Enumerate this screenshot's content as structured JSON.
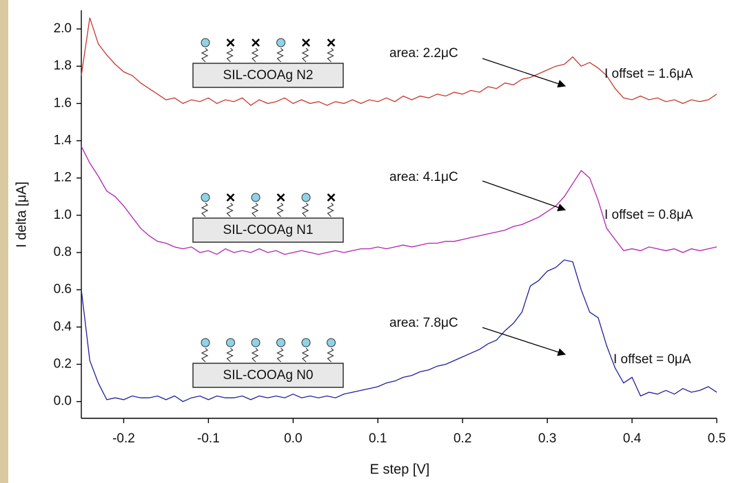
{
  "chart_data": {
    "type": "line",
    "x_label": "E step [V]",
    "y_label": "I delta [μA]",
    "xlim": [
      -0.25,
      0.5
    ],
    "ylim": [
      -0.09,
      2.1
    ],
    "xticks": [
      -0.2,
      -0.1,
      {
        "value": 0,
        "label": "0.0"
      },
      0.1,
      0.2,
      0.3,
      0.4,
      0.5
    ],
    "yticks": [
      {
        "value": 0,
        "label": "0.0"
      },
      0.2,
      0.4,
      0.6,
      0.8,
      {
        "value": 1,
        "label": "1.0"
      },
      1.2,
      1.4,
      1.6,
      1.8,
      {
        "value": 2,
        "label": "2.0"
      }
    ],
    "x": [
      -0.25,
      -0.24,
      -0.23,
      -0.22,
      -0.21,
      -0.2,
      -0.19,
      -0.18,
      -0.17,
      -0.16,
      -0.15,
      -0.14,
      -0.13,
      -0.12,
      -0.11,
      -0.1,
      -0.09,
      -0.08,
      -0.07,
      -0.06,
      -0.05,
      -0.04,
      -0.03,
      -0.02,
      -0.01,
      0,
      0.01,
      0.02,
      0.03,
      0.04,
      0.05,
      0.06,
      0.07,
      0.08,
      0.09,
      0.1,
      0.11,
      0.12,
      0.13,
      0.14,
      0.15,
      0.16,
      0.17,
      0.18,
      0.19,
      0.2,
      0.21,
      0.22,
      0.23,
      0.24,
      0.25,
      0.26,
      0.27,
      0.28,
      0.29,
      0.3,
      0.31,
      0.32,
      0.33,
      0.34,
      0.35,
      0.36,
      0.37,
      0.38,
      0.39,
      0.4,
      0.41,
      0.42,
      0.43,
      0.44,
      0.45,
      0.46,
      0.47,
      0.48,
      0.49,
      0.5
    ],
    "series": [
      {
        "name": "SIL-COOAg N2",
        "color": "#c8372d",
        "area_label": "area: 2.2μC",
        "offset_label": "I offset = 1.6μA",
        "values": [
          1.75,
          2.06,
          1.92,
          1.86,
          1.81,
          1.77,
          1.75,
          1.71,
          1.68,
          1.65,
          1.62,
          1.63,
          1.6,
          1.62,
          1.61,
          1.63,
          1.6,
          1.62,
          1.61,
          1.63,
          1.59,
          1.62,
          1.6,
          1.61,
          1.63,
          1.6,
          1.62,
          1.6,
          1.61,
          1.59,
          1.61,
          1.6,
          1.62,
          1.6,
          1.62,
          1.61,
          1.63,
          1.61,
          1.64,
          1.62,
          1.64,
          1.63,
          1.65,
          1.64,
          1.66,
          1.65,
          1.67,
          1.66,
          1.69,
          1.68,
          1.71,
          1.7,
          1.73,
          1.74,
          1.76,
          1.78,
          1.8,
          1.81,
          1.85,
          1.8,
          1.82,
          1.79,
          1.75,
          1.68,
          1.63,
          1.62,
          1.64,
          1.62,
          1.63,
          1.61,
          1.62,
          1.6,
          1.62,
          1.61,
          1.62,
          1.65
        ]
      },
      {
        "name": "SIL-COOAg N1",
        "color": "#b023b0",
        "area_label": "area: 4.1μC",
        "offset_label": "I offset = 0.8μA",
        "values": [
          1.37,
          1.28,
          1.21,
          1.13,
          1.1,
          1.05,
          0.99,
          0.93,
          0.89,
          0.86,
          0.85,
          0.83,
          0.82,
          0.83,
          0.8,
          0.81,
          0.79,
          0.82,
          0.8,
          0.81,
          0.8,
          0.82,
          0.8,
          0.81,
          0.79,
          0.8,
          0.81,
          0.8,
          0.79,
          0.8,
          0.81,
          0.8,
          0.81,
          0.82,
          0.82,
          0.83,
          0.82,
          0.83,
          0.84,
          0.83,
          0.84,
          0.85,
          0.85,
          0.86,
          0.86,
          0.87,
          0.88,
          0.89,
          0.9,
          0.91,
          0.92,
          0.94,
          0.95,
          0.97,
          0.99,
          1.02,
          1.05,
          1.1,
          1.17,
          1.24,
          1.2,
          1.08,
          0.93,
          0.87,
          0.81,
          0.82,
          0.81,
          0.83,
          0.82,
          0.81,
          0.82,
          0.8,
          0.82,
          0.81,
          0.82,
          0.83
        ]
      },
      {
        "name": "SIL-COOAg N0",
        "color": "#1f1f9c",
        "area_label": "area: 7.8μC",
        "offset_label": "I offset = 0μA",
        "values": [
          0.6,
          0.22,
          0.1,
          0.01,
          0.02,
          0.01,
          0.03,
          0.02,
          0.02,
          0.03,
          0.01,
          0.03,
          0,
          0.02,
          0.03,
          0.01,
          0.03,
          0.02,
          0.02,
          0.03,
          0.01,
          0.03,
          0.02,
          0.03,
          0.02,
          0.04,
          0.02,
          0.03,
          0.02,
          0.03,
          0.02,
          0.04,
          0.05,
          0.06,
          0.07,
          0.08,
          0.1,
          0.11,
          0.13,
          0.14,
          0.16,
          0.17,
          0.19,
          0.2,
          0.22,
          0.24,
          0.26,
          0.28,
          0.31,
          0.33,
          0.38,
          0.42,
          0.48,
          0.62,
          0.65,
          0.7,
          0.72,
          0.76,
          0.75,
          0.6,
          0.48,
          0.45,
          0.3,
          0.18,
          0.1,
          0.13,
          0.03,
          0.05,
          0.04,
          0.06,
          0.04,
          0.07,
          0.05,
          0.06,
          0.08,
          0.05
        ]
      }
    ]
  }
}
